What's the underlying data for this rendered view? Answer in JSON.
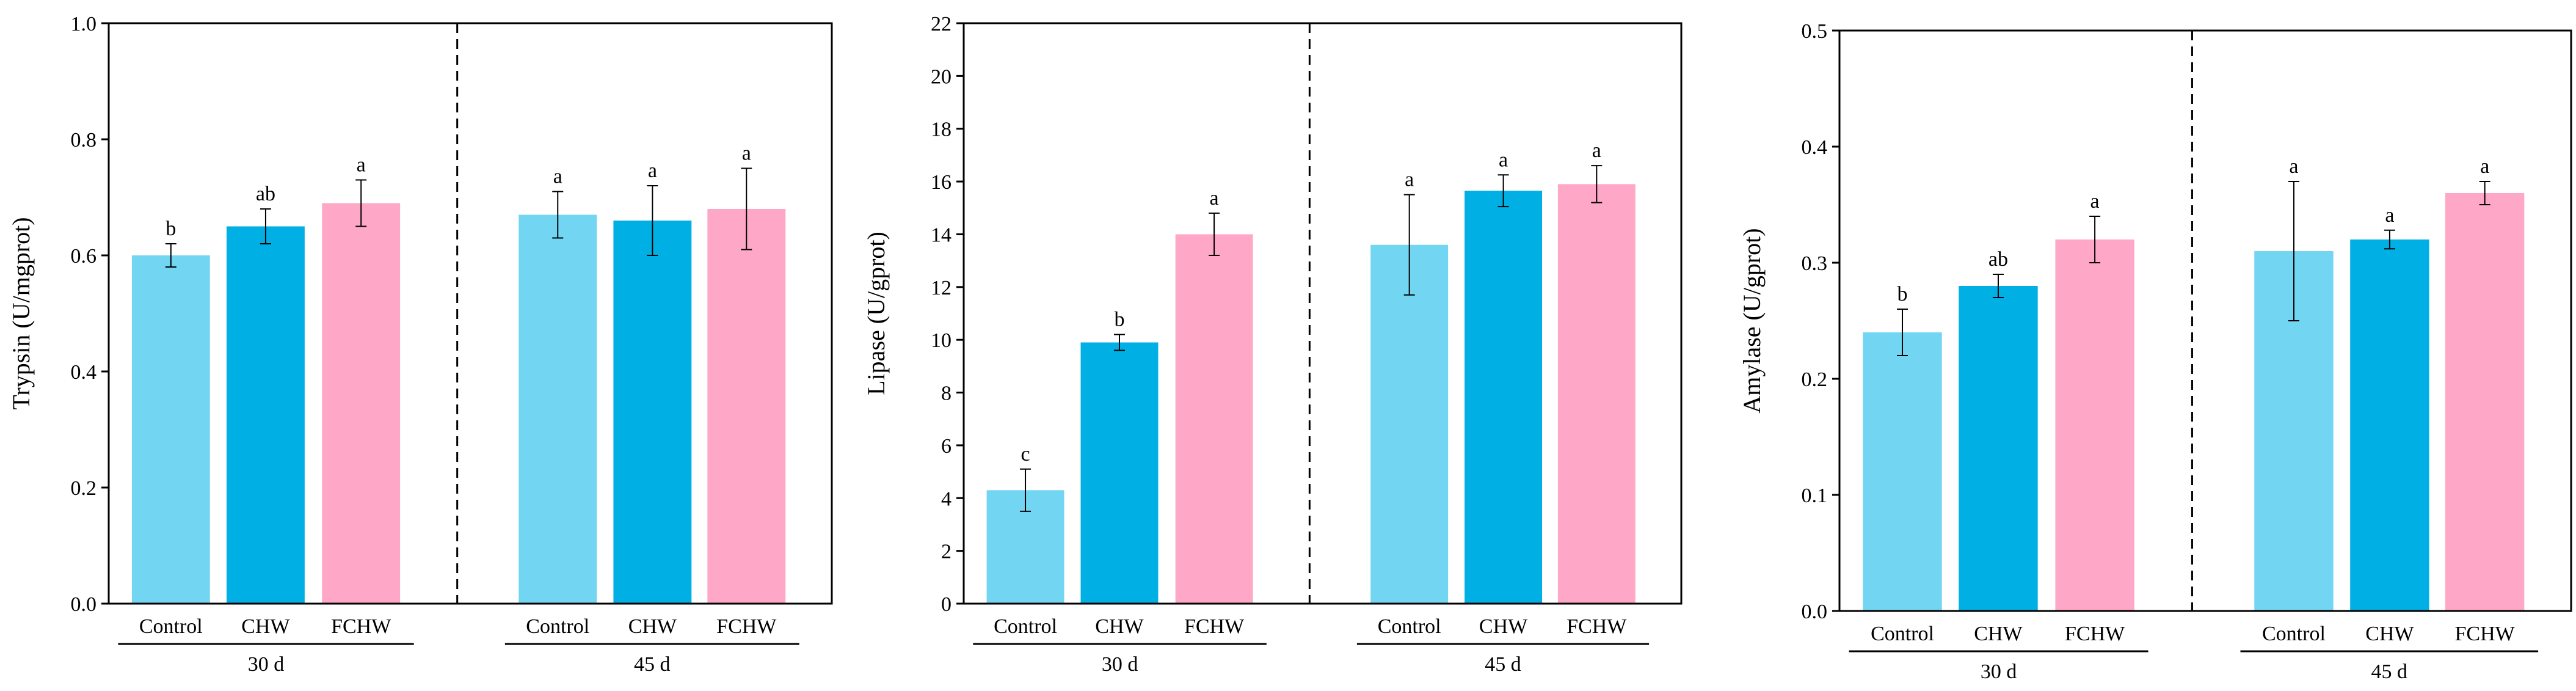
{
  "figure": {
    "panels_count": 3
  },
  "colors": {
    "Control": "#72d6f3",
    "CHW": "#00afe4",
    "FCHW": "#ffa7c6",
    "axis": "#000000"
  },
  "chart_data": [
    {
      "type": "bar",
      "title": "",
      "xlabel": "",
      "ylabel": "Trypsin (U/mgprot)",
      "ylim": [
        0,
        1.0
      ],
      "yticks": [
        "0.0",
        "0.2",
        "0.4",
        "0.6",
        "0.8",
        "1.0"
      ],
      "ytick_values": [
        0,
        0.2,
        0.4,
        0.6,
        0.8,
        1.0
      ],
      "groups": [
        "30 d",
        "45 d"
      ],
      "categories": [
        "Control",
        "CHW",
        "FCHW"
      ],
      "series": [
        {
          "name": "30 d",
          "values": [
            0.6,
            0.65,
            0.69
          ],
          "errors": [
            0.02,
            0.03,
            0.04
          ],
          "labels": [
            "b",
            "ab",
            "a"
          ]
        },
        {
          "name": "45 d",
          "values": [
            0.67,
            0.66,
            0.68
          ],
          "errors": [
            0.04,
            0.06,
            0.07
          ],
          "labels": [
            "a",
            "a",
            "a"
          ]
        }
      ]
    },
    {
      "type": "bar",
      "title": "",
      "xlabel": "",
      "ylabel": "Lipase (U/gprot)",
      "ylim": [
        0,
        22
      ],
      "yticks": [
        "0",
        "2",
        "4",
        "6",
        "8",
        "10",
        "12",
        "14",
        "16",
        "18",
        "20",
        "22"
      ],
      "ytick_values": [
        0,
        2,
        4,
        6,
        8,
        10,
        12,
        14,
        16,
        18,
        20,
        22
      ],
      "groups": [
        "30 d",
        "45 d"
      ],
      "categories": [
        "Control",
        "CHW",
        "FCHW"
      ],
      "series": [
        {
          "name": "30 d",
          "values": [
            4.3,
            9.9,
            14.0
          ],
          "errors": [
            0.8,
            0.3,
            0.8
          ],
          "labels": [
            "c",
            "b",
            "a"
          ]
        },
        {
          "name": "45 d",
          "values": [
            13.6,
            15.65,
            15.9
          ],
          "errors": [
            1.9,
            0.6,
            0.7
          ],
          "labels": [
            "a",
            "a",
            "a"
          ]
        }
      ]
    },
    {
      "type": "bar",
      "title": "",
      "xlabel": "",
      "ylabel": "Amylase (U/gprot)",
      "ylim": [
        0,
        0.5
      ],
      "yticks": [
        "0.0",
        "0.1",
        "0.2",
        "0.3",
        "0.4",
        "0.5"
      ],
      "ytick_values": [
        0,
        0.1,
        0.2,
        0.3,
        0.4,
        0.5
      ],
      "groups": [
        "30 d",
        "45 d"
      ],
      "categories": [
        "Control",
        "CHW",
        "FCHW"
      ],
      "series": [
        {
          "name": "30 d",
          "values": [
            0.24,
            0.28,
            0.32
          ],
          "errors": [
            0.02,
            0.01,
            0.02
          ],
          "labels": [
            "b",
            "ab",
            "a"
          ]
        },
        {
          "name": "45 d",
          "values": [
            0.31,
            0.32,
            0.36
          ],
          "errors": [
            0.06,
            0.008,
            0.01
          ],
          "labels": [
            "a",
            "a",
            "a"
          ]
        }
      ]
    }
  ]
}
